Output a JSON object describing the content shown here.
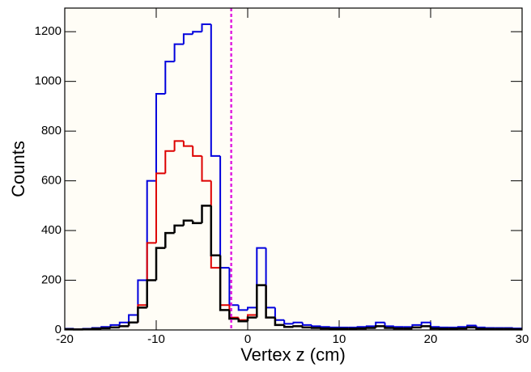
{
  "chart_data": {
    "type": "histogram",
    "x_label": "Vertex z (cm)",
    "y_label": "Counts",
    "bins": [
      -20,
      -19,
      -18,
      -17,
      -16,
      -15,
      -14,
      -13,
      -12,
      -11,
      -10,
      -9,
      -8,
      -7,
      -6,
      -5,
      -4,
      -3,
      -2,
      -1,
      0,
      1,
      2,
      3,
      4,
      5,
      6,
      7,
      8,
      9,
      10,
      11,
      12,
      13,
      14,
      15,
      16,
      17,
      18,
      19,
      20,
      21,
      22,
      23,
      24,
      25,
      26,
      27,
      28,
      29,
      30
    ],
    "series": [
      {
        "color": "#0000dd",
        "values": [
          5,
          3,
          5,
          8,
          12,
          20,
          30,
          60,
          200,
          600,
          950,
          1080,
          1150,
          1190,
          1200,
          1230,
          700,
          250,
          100,
          80,
          90,
          330,
          90,
          40,
          25,
          30,
          20,
          15,
          12,
          10,
          10,
          10,
          12,
          15,
          30,
          15,
          12,
          12,
          20,
          30,
          12,
          10,
          10,
          12,
          18,
          10,
          8,
          8,
          8,
          6
        ]
      },
      {
        "color": "#dd0000",
        "values": [
          3,
          2,
          3,
          5,
          7,
          10,
          15,
          30,
          100,
          350,
          630,
          720,
          760,
          740,
          700,
          600,
          250,
          100,
          50,
          40,
          60,
          180,
          50,
          20,
          12,
          15,
          10,
          8,
          6,
          5,
          5,
          5,
          6,
          8,
          15,
          8,
          6,
          6,
          10,
          15,
          6,
          5,
          5,
          6,
          10,
          5,
          4,
          4,
          4,
          3
        ]
      },
      {
        "color": "#000000",
        "values": [
          3,
          2,
          3,
          5,
          7,
          10,
          15,
          30,
          90,
          200,
          330,
          390,
          420,
          440,
          430,
          500,
          300,
          80,
          45,
          35,
          50,
          180,
          50,
          20,
          12,
          15,
          10,
          8,
          6,
          5,
          5,
          5,
          6,
          8,
          15,
          8,
          6,
          6,
          10,
          15,
          6,
          5,
          5,
          6,
          10,
          5,
          4,
          4,
          4,
          3
        ]
      }
    ],
    "vline_x": -1.8,
    "vline_color": "#e020e0",
    "xlim": [
      -20,
      30
    ],
    "xticks": [
      -20,
      -10,
      0,
      10,
      20,
      30
    ],
    "ylim": [
      0,
      1295
    ],
    "yticks": [
      0,
      200,
      400,
      600,
      800,
      1000,
      1200
    ]
  }
}
